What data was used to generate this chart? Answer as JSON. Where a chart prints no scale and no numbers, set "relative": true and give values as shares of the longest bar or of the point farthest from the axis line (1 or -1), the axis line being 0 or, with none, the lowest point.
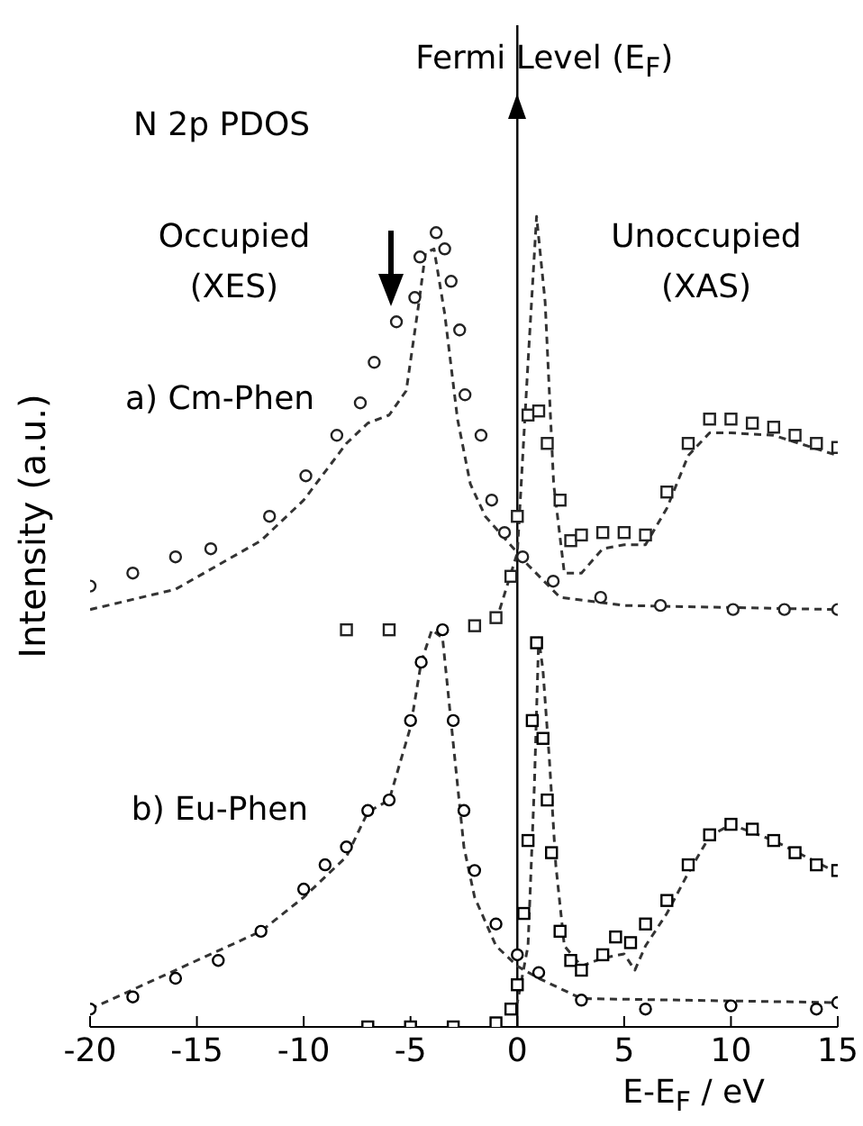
{
  "chart_data": {
    "type": "line",
    "relative": true,
    "xlim": [
      -20,
      15
    ],
    "xticks": [
      -20,
      -15,
      -10,
      -5,
      0,
      5,
      10,
      15
    ],
    "xlabel": "E-E$_{F}$ / eV",
    "ylabel": "Intensity (a.u.)",
    "annotations": [
      "N 2p PDOS",
      "Occupied\n(XES)",
      "Unoccupied\n(XAS)",
      "a) Cm-Phen",
      "b) Eu-Phen"
    ],
    "ref_lines": [
      {
        "axis": "x",
        "value": 0,
        "label": "Fermi Level (E$_{F}$)",
        "color": "#000000"
      }
    ],
    "series": [
      {
        "type": "scatter",
        "marker": "circle",
        "color": "#222222",
        "x": [
          -20,
          -18,
          -16,
          -14.35,
          -11.6,
          -9.9,
          -8.45,
          -7.35,
          -6.7,
          -5.66,
          -4.8,
          -4.56,
          -3.8,
          -3.4,
          -3.1,
          -2.7,
          -2.45,
          -1.7,
          -1.2,
          -0.6,
          0,
          0.25,
          1.68,
          3.9,
          6.7,
          10.1,
          12.5,
          15
        ],
        "values": [
          0.544,
          0.56,
          0.58,
          0.59,
          0.63,
          0.68,
          0.73,
          0.77,
          0.82,
          0.87,
          0.9,
          0.95,
          0.98,
          0.96,
          0.92,
          0.86,
          0.78,
          0.73,
          0.65,
          0.61,
          null,
          0.58,
          0.55,
          0.53,
          0.52,
          0.515,
          0.515,
          0.515
        ]
      },
      {
        "type": "line",
        "marker": "none",
        "line_style": "dashed",
        "color": "#333333",
        "x": [
          -20,
          -16,
          -12,
          -10,
          -8,
          -7,
          -6,
          -5.2,
          -4.6,
          -4.3,
          -3.9,
          -3.4,
          -2.8,
          -2.2,
          -1.5,
          -0.5,
          0.5,
          2,
          5,
          15
        ],
        "values": [
          0.515,
          0.54,
          0.6,
          0.65,
          0.72,
          0.745,
          0.755,
          0.785,
          0.895,
          0.955,
          0.96,
          0.88,
          0.75,
          0.67,
          0.63,
          0.6,
          0.57,
          0.53,
          0.52,
          0.515
        ]
      },
      {
        "type": "scatter",
        "marker": "square",
        "color": "#222222",
        "x": [
          -8,
          -6,
          -4,
          -2,
          -1,
          -0.3,
          0,
          0.5,
          1,
          1.4,
          2,
          2.5,
          3,
          4,
          5,
          6,
          7,
          8,
          9,
          10,
          11,
          12,
          13,
          14,
          15
        ],
        "values": [
          0.49,
          0.49,
          null,
          0.495,
          0.505,
          0.556,
          0.63,
          0.755,
          0.76,
          0.72,
          0.65,
          0.6,
          0.607,
          0.61,
          0.61,
          0.607,
          0.66,
          0.72,
          0.75,
          0.75,
          0.745,
          0.74,
          0.73,
          0.72,
          0.715
        ]
      },
      {
        "type": "line",
        "marker": "none",
        "line_style": "dashed",
        "color": "#333333",
        "x": [
          -1,
          0,
          0.5,
          0.9,
          1.3,
          1.7,
          2.2,
          3,
          4,
          5,
          6,
          7,
          8,
          9,
          10,
          12,
          15
        ],
        "values": [
          0.5,
          0.585,
          0.82,
          1,
          0.895,
          0.67,
          0.56,
          0.56,
          0.59,
          0.595,
          0.595,
          0.64,
          0.705,
          0.733,
          0.733,
          0.73,
          0.705
        ]
      },
      {
        "type": "scatter",
        "marker": "circle",
        "color": "#000000",
        "x": [
          -20,
          -18,
          -16,
          -14,
          -12,
          -10,
          -9,
          -8,
          -7,
          -6,
          -5,
          -4.5,
          -4,
          -3.5,
          -3,
          -2.5,
          -2,
          -1,
          0,
          1,
          3,
          6,
          10,
          14,
          15
        ],
        "values": [
          0.022,
          0.037,
          0.06,
          0.082,
          0.118,
          0.17,
          0.2,
          0.222,
          0.267,
          0.28,
          0.378,
          0.45,
          null,
          0.49,
          0.378,
          0.267,
          0.193,
          0.127,
          0.089,
          0.067,
          0.033,
          0.022,
          0.026,
          0.022,
          0.03
        ]
      },
      {
        "type": "line",
        "marker": "none",
        "line_style": "dashed",
        "color": "#333333",
        "x": [
          -20,
          -12,
          -10,
          -8,
          -7,
          -6,
          -5,
          -4.5,
          -4,
          -3.5,
          -3,
          -2.5,
          -2,
          -1,
          0,
          1,
          3,
          15
        ],
        "values": [
          0.022,
          0.118,
          0.16,
          0.21,
          0.265,
          0.28,
          0.37,
          0.45,
          0.49,
          0.48,
          0.35,
          0.222,
          0.16,
          0.1,
          0.075,
          0.06,
          0.035,
          0.03
        ]
      },
      {
        "type": "scatter",
        "marker": "square",
        "color": "#000000",
        "x": [
          -7,
          -5,
          -3,
          -1,
          -0.3,
          0,
          0.3,
          0.5,
          0.7,
          0.9,
          1.2,
          1.4,
          1.6,
          2,
          2.5,
          3,
          4,
          4.6,
          5.3,
          6,
          7,
          8,
          9,
          10,
          11,
          12,
          13,
          14,
          15
        ],
        "values": [
          0,
          0,
          0,
          0.005,
          0.022,
          0.052,
          0.14,
          0.23,
          0.378,
          0.474,
          0.356,
          0.28,
          0.215,
          0.118,
          0.082,
          0.07,
          0.089,
          0.111,
          0.104,
          0.127,
          0.156,
          0.2,
          0.237,
          0.25,
          0.244,
          0.23,
          0.215,
          0.2,
          0.193
        ]
      },
      {
        "type": "line",
        "marker": "none",
        "line_style": "dashed",
        "color": "#333333",
        "x": [
          -1,
          0,
          0.5,
          0.8,
          1,
          1.2,
          1.5,
          1.8,
          2.2,
          3,
          4,
          5,
          5.5,
          6,
          7,
          8,
          9,
          10,
          12,
          15
        ],
        "values": [
          0.005,
          0.03,
          0.1,
          0.3,
          0.48,
          0.44,
          0.33,
          0.2,
          0.1,
          0.075,
          0.085,
          0.09,
          0.07,
          0.1,
          0.14,
          0.19,
          0.235,
          0.25,
          0.23,
          0.19
        ]
      }
    ]
  }
}
